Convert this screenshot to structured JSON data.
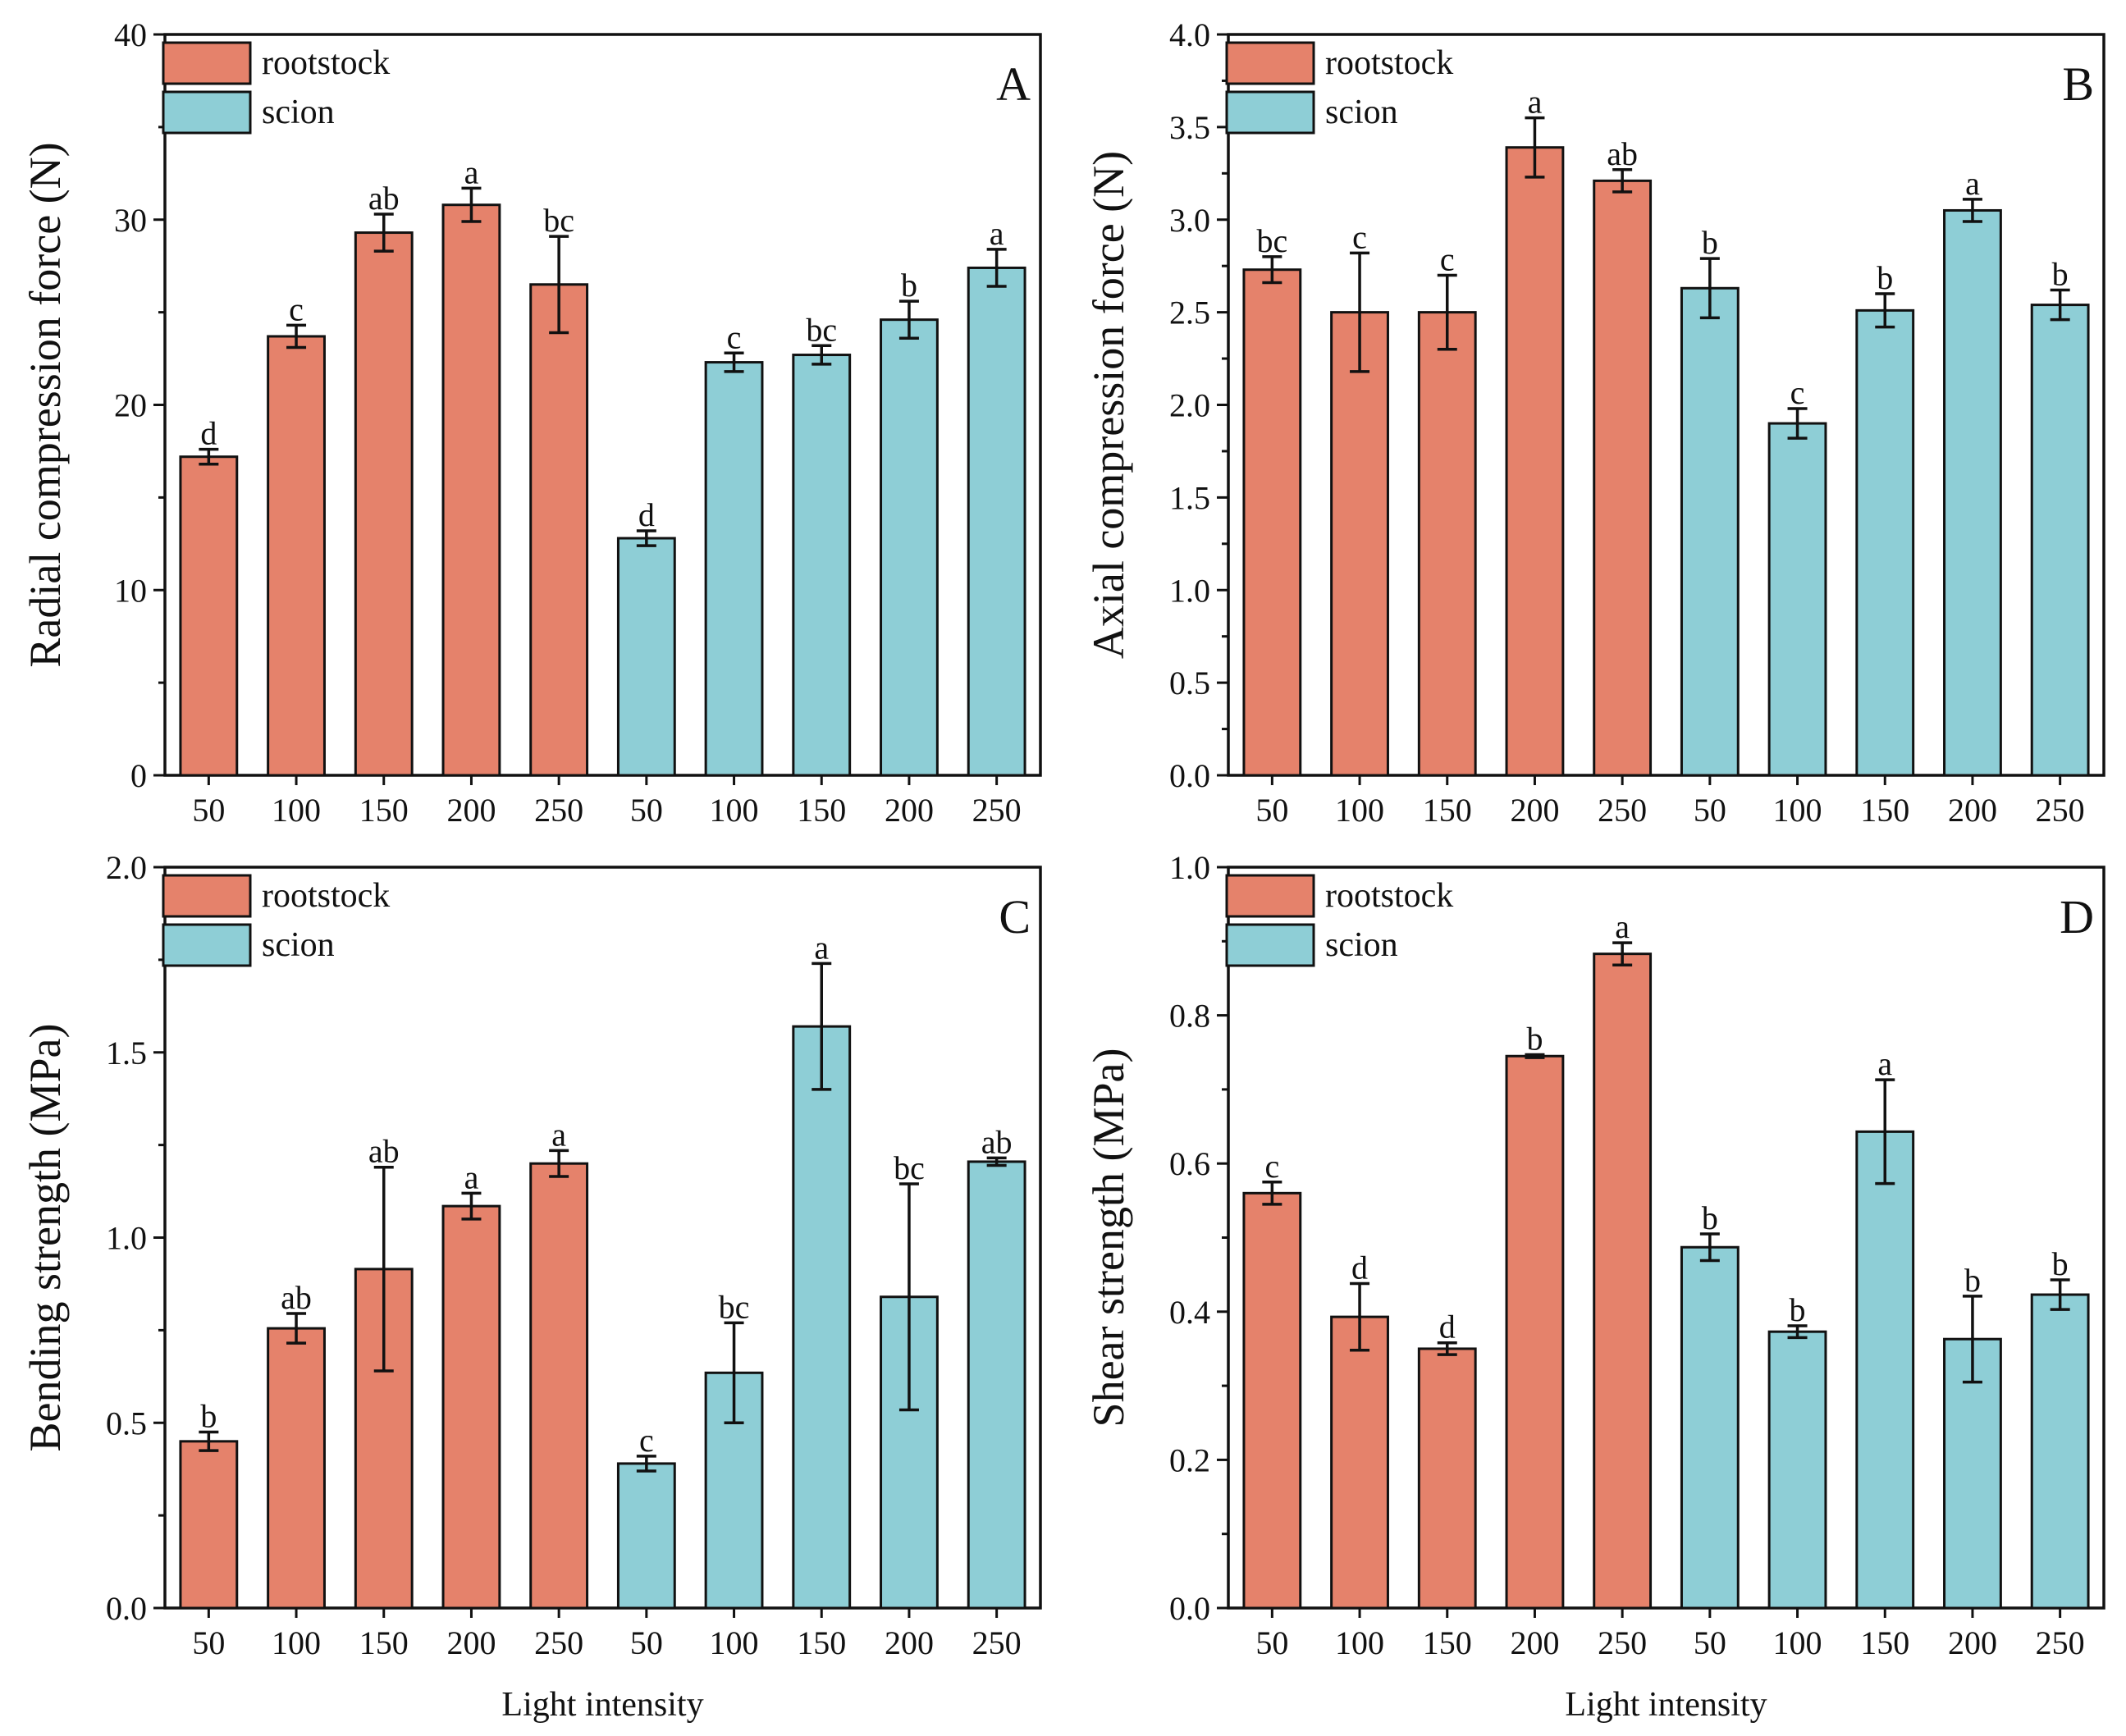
{
  "figure": {
    "xlabel": "Light intensity"
  },
  "colors": {
    "rootstock": "#E5826B",
    "scion": "#8ECED6"
  },
  "chart_data": [
    {
      "type": "bar",
      "panel": "A",
      "ylabel": "Radial compression force (N)",
      "xlabel": "",
      "ylim": [
        0,
        40
      ],
      "yticks": [
        "0",
        "10",
        "20",
        "30",
        "40"
      ],
      "categories": [
        "50",
        "100",
        "150",
        "200",
        "250",
        "50",
        "100",
        "150",
        "200",
        "250"
      ],
      "groups": [
        "rootstock",
        "rootstock",
        "rootstock",
        "rootstock",
        "rootstock",
        "scion",
        "scion",
        "scion",
        "scion",
        "scion"
      ],
      "values": [
        17.2,
        23.7,
        29.3,
        30.8,
        26.5,
        12.8,
        22.3,
        22.7,
        24.6,
        27.4
      ],
      "errors": [
        0.4,
        0.6,
        1.0,
        0.9,
        2.6,
        0.4,
        0.5,
        0.5,
        1.0,
        1.0
      ],
      "labels": [
        "d",
        "c",
        "ab",
        "a",
        "bc",
        "d",
        "c",
        "bc",
        "b",
        "a"
      ],
      "legend": [
        "rootstock",
        "scion"
      ]
    },
    {
      "type": "bar",
      "panel": "B",
      "ylabel": "Axial compression force (N)",
      "xlabel": "",
      "ylim": [
        0,
        4.0
      ],
      "yticks": [
        "0.0",
        "0.5",
        "1.0",
        "1.5",
        "2.0",
        "2.5",
        "3.0",
        "3.5",
        "4.0"
      ],
      "categories": [
        "50",
        "100",
        "150",
        "200",
        "250",
        "50",
        "100",
        "150",
        "200",
        "250"
      ],
      "groups": [
        "rootstock",
        "rootstock",
        "rootstock",
        "rootstock",
        "rootstock",
        "scion",
        "scion",
        "scion",
        "scion",
        "scion"
      ],
      "values": [
        2.73,
        2.5,
        2.5,
        3.39,
        3.21,
        2.63,
        1.9,
        2.51,
        3.05,
        2.54
      ],
      "errors": [
        0.07,
        0.32,
        0.2,
        0.16,
        0.06,
        0.16,
        0.08,
        0.09,
        0.06,
        0.08
      ],
      "labels": [
        "bc",
        "c",
        "c",
        "a",
        "ab",
        "b",
        "c",
        "b",
        "a",
        "b"
      ],
      "legend": [
        "rootstock",
        "scion"
      ]
    },
    {
      "type": "bar",
      "panel": "C",
      "ylabel": "Bending strength (MPa)",
      "xlabel": "Light intensity",
      "ylim": [
        0,
        2.0
      ],
      "yticks": [
        "0.0",
        "0.5",
        "1.0",
        "1.5",
        "2.0"
      ],
      "categories": [
        "50",
        "100",
        "150",
        "200",
        "250",
        "50",
        "100",
        "150",
        "200",
        "250"
      ],
      "groups": [
        "rootstock",
        "rootstock",
        "rootstock",
        "rootstock",
        "rootstock",
        "scion",
        "scion",
        "scion",
        "scion",
        "scion"
      ],
      "values": [
        0.45,
        0.755,
        0.915,
        1.085,
        1.2,
        0.39,
        0.635,
        1.57,
        0.84,
        1.205
      ],
      "errors": [
        0.025,
        0.04,
        0.275,
        0.035,
        0.035,
        0.02,
        0.135,
        0.17,
        0.305,
        0.01
      ],
      "labels": [
        "b",
        "ab",
        "ab",
        "a",
        "a",
        "c",
        "bc",
        "a",
        "bc",
        "ab"
      ],
      "legend": [
        "rootstock",
        "scion"
      ]
    },
    {
      "type": "bar",
      "panel": "D",
      "ylabel": "Shear strength (MPa)",
      "xlabel": "Light intensity",
      "ylim": [
        0,
        1.0
      ],
      "yticks": [
        "0.0",
        "0.2",
        "0.4",
        "0.6",
        "0.8",
        "1.0"
      ],
      "categories": [
        "50",
        "100",
        "150",
        "200",
        "250",
        "50",
        "100",
        "150",
        "200",
        "250"
      ],
      "groups": [
        "rootstock",
        "rootstock",
        "rootstock",
        "rootstock",
        "rootstock",
        "scion",
        "scion",
        "scion",
        "scion",
        "scion"
      ],
      "values": [
        0.56,
        0.393,
        0.35,
        0.745,
        0.883,
        0.487,
        0.373,
        0.643,
        0.363,
        0.423
      ],
      "errors": [
        0.015,
        0.045,
        0.008,
        0.002,
        0.015,
        0.018,
        0.008,
        0.07,
        0.058,
        0.02
      ],
      "labels": [
        "c",
        "d",
        "d",
        "b",
        "a",
        "b",
        "b",
        "a",
        "b",
        "b"
      ],
      "legend": [
        "rootstock",
        "scion"
      ]
    }
  ]
}
